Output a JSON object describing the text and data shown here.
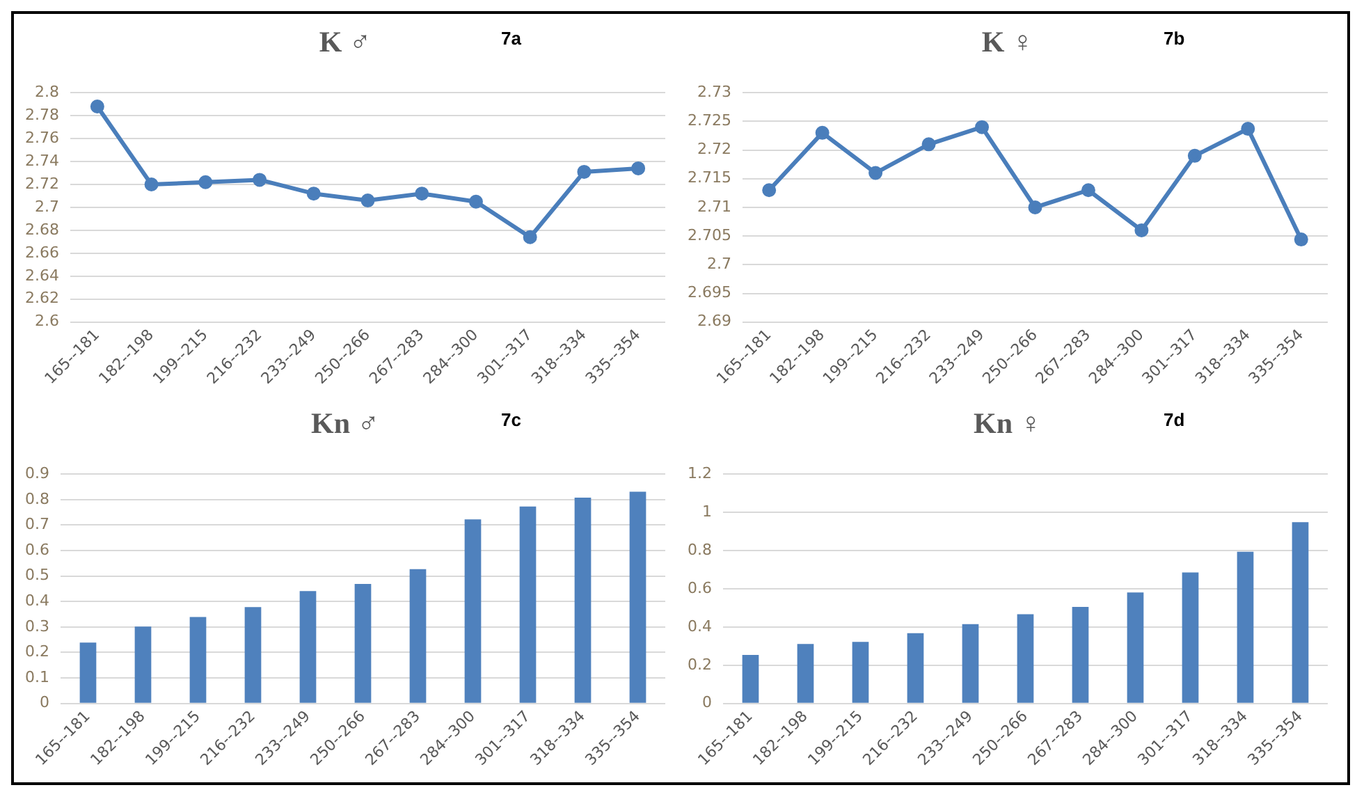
{
  "chart_data": [
    {
      "type": "line",
      "title": "K ♂",
      "annotations": [
        "7a"
      ],
      "categories": [
        "165--181",
        "182--198",
        "199--215",
        "216--232",
        "233--249",
        "250--266",
        "267--283",
        "284--300",
        "301--317",
        "318--334",
        "335--354"
      ],
      "color": "#4a7ebb",
      "marker": "circle",
      "grid": "y",
      "legend": false,
      "values": [
        2.788,
        2.72,
        2.722,
        2.724,
        2.712,
        2.706,
        2.712,
        2.705,
        2.674,
        2.731,
        2.734
      ],
      "ylim": [
        2.6,
        2.8
      ],
      "yticks": [
        2.6,
        2.62,
        2.64,
        2.66,
        2.68,
        2.7,
        2.72,
        2.74,
        2.76,
        2.78,
        2.8
      ]
    },
    {
      "type": "line",
      "title": "K ♀",
      "annotations": [
        "7b"
      ],
      "categories": [
        "165--181",
        "182--198",
        "199--215",
        "216--232",
        "233--249",
        "250--266",
        "267--283",
        "284--300",
        "301--317",
        "318--334",
        "335--354"
      ],
      "color": "#4a7ebb",
      "marker": "circle",
      "grid": "y",
      "legend": false,
      "values": [
        2.713,
        2.723,
        2.716,
        2.721,
        2.724,
        2.71,
        2.713,
        2.706,
        2.719,
        2.7237,
        2.7044
      ],
      "ylim": [
        2.69,
        2.73
      ],
      "yticks": [
        2.69,
        2.695,
        2.7,
        2.705,
        2.71,
        2.715,
        2.72,
        2.725,
        2.73
      ]
    },
    {
      "type": "bar",
      "title": "Kn ♂",
      "annotations": [
        "7c"
      ],
      "categories": [
        "165--181",
        "182--198",
        "199--215",
        "216--232",
        "233--249",
        "250--266",
        "267--283",
        "284--300",
        "301--317",
        "318--334",
        "335--354"
      ],
      "color": "#4f81bd",
      "grid": "y",
      "legend": false,
      "values": [
        0.239,
        0.302,
        0.339,
        0.378,
        0.441,
        0.469,
        0.527,
        0.722,
        0.773,
        0.808,
        0.831
      ],
      "ylim": [
        0,
        0.9
      ],
      "yticks": [
        0,
        0.1,
        0.2,
        0.3,
        0.4,
        0.5,
        0.6,
        0.7,
        0.8,
        0.9
      ]
    },
    {
      "type": "bar",
      "title": "Kn ♀",
      "annotations": [
        "7d"
      ],
      "categories": [
        "165--181",
        "182--198",
        "199--215",
        "216--232",
        "233--249",
        "250--266",
        "267--283",
        "284--300",
        "301--317",
        "318--334",
        "335--354"
      ],
      "color": "#4f81bd",
      "grid": "y",
      "legend": false,
      "values": [
        0.254,
        0.311,
        0.322,
        0.368,
        0.415,
        0.467,
        0.505,
        0.581,
        0.685,
        0.794,
        0.949
      ],
      "ylim": [
        0,
        1.2
      ],
      "yticks": [
        0,
        0.2,
        0.4,
        0.6,
        0.8,
        1,
        1.2
      ]
    }
  ]
}
